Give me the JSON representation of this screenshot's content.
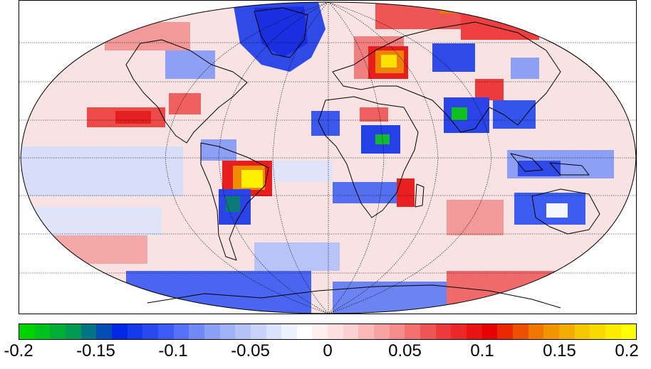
{
  "colorbar": {
    "ticks": [
      "-0.2",
      "-0.15",
      "-0.1",
      "-0.05",
      "0",
      "0.05",
      "0.1",
      "0.15",
      "0.2"
    ],
    "range": [
      -0.2,
      0.2
    ],
    "colors": [
      "#00d400",
      "#009a50",
      "#0028e6",
      "#3c5af5",
      "#8aa0f5",
      "#c9d3fa",
      "#ffffff",
      "#fbd0d0",
      "#f58c8c",
      "#ee3a3a",
      "#e60000",
      "#f07800",
      "#f5c800",
      "#ffff00"
    ]
  },
  "map": {
    "projection": "Robinson",
    "colors": {
      "ocean_base": "#f6dada",
      "strong_red": "#e83030",
      "medium_red": "#f08888",
      "light_blue": "#c8d0f8",
      "strong_blue": "#1f35e8",
      "green": "#10c020",
      "yellow": "#fff000",
      "coast": "#000000",
      "grid": "#000000"
    }
  }
}
